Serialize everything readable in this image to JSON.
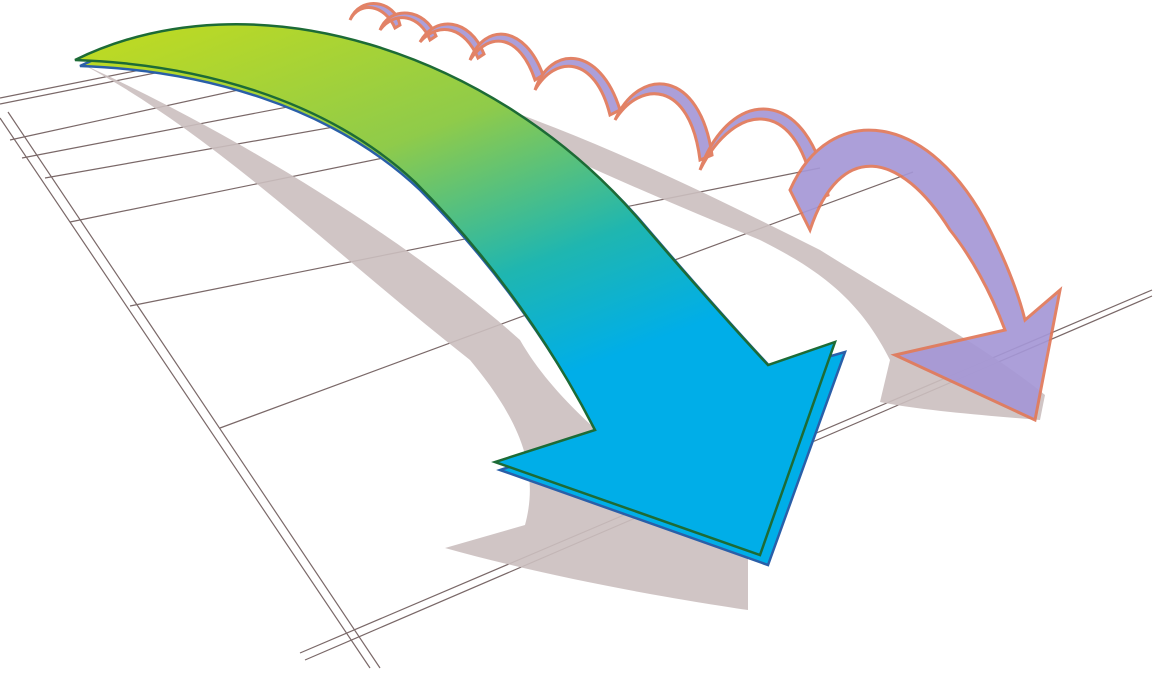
{
  "illustration": {
    "subject": "arrows-leap-comparison",
    "background_color": "#ffffff",
    "grid_line_color": "#7a6868",
    "shadow_color": "#cbbfbf",
    "big_arrow": {
      "gradient_colors": [
        "#c3dc1e",
        "#8fcb4a",
        "#1fb6b0",
        "#00aee8"
      ],
      "outline_color": "#1d6b36",
      "outline_alt_color": "#2a5fa8"
    },
    "small_arrows": {
      "fill_color": "#a597d6",
      "outline_color": "#e0785a",
      "bounce_count": 8
    }
  }
}
